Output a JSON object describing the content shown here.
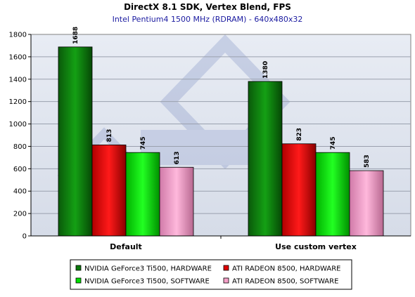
{
  "chart_data": {
    "type": "bar",
    "title": "DirectX 8.1 SDK, Vertex Blend, FPS",
    "subtitle": "Intel Pentium4 1500 MHz (RDRAM) - 640x480x32",
    "categories": [
      "Default",
      "Use custom vertex"
    ],
    "series": [
      {
        "name": "NVIDIA GeForce3 Ti500, HARDWARE",
        "color": "#0b7a0b",
        "values": [
          1688,
          1380
        ]
      },
      {
        "name": "ATI RADEON 8500, HARDWARE",
        "color": "#e00000",
        "values": [
          813,
          823
        ]
      },
      {
        "name": "NVIDIA GeForce3 Ti500, SOFTWARE",
        "color": "#00e000",
        "values": [
          745,
          745
        ]
      },
      {
        "name": "ATI RADEON 8500, SOFTWARE",
        "color": "#f5a0c8",
        "values": [
          613,
          583
        ]
      }
    ],
    "ylim": [
      0,
      1800
    ],
    "yticks": [
      0,
      200,
      400,
      600,
      800,
      1000,
      1200,
      1400,
      1600,
      1800
    ],
    "grid": true,
    "legend_position": "bottom",
    "plot_background": "#dfe4ee"
  }
}
